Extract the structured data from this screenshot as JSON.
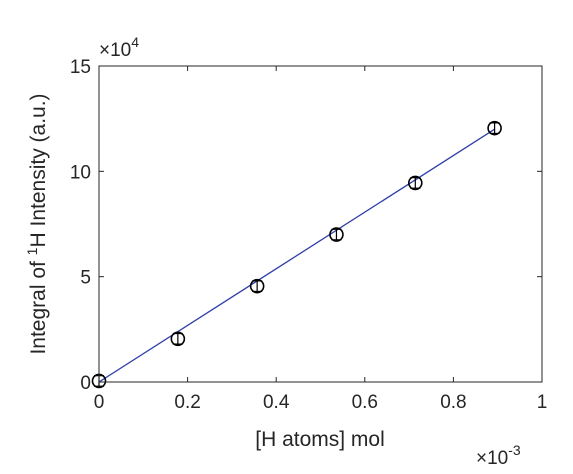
{
  "chart_data": {
    "type": "scatter",
    "title": "",
    "xlabel": "[H atoms] mol",
    "ylabel_pre": "Integral of ",
    "ylabel_sup": "1",
    "ylabel_post": "H Intensity (a.u.)",
    "x_multiplier_base": "×10",
    "x_multiplier_exp": "-3",
    "y_multiplier_base": "×10",
    "y_multiplier_exp": "4",
    "xlim": [
      0,
      1
    ],
    "ylim": [
      0,
      15
    ],
    "xticks": [
      0,
      0.2,
      0.4,
      0.6,
      0.8,
      1
    ],
    "xtick_labels": [
      "0",
      "0.2",
      "0.4",
      "0.6",
      "0.8",
      "1"
    ],
    "yticks": [
      0,
      5,
      10,
      15
    ],
    "ytick_labels": [
      "0",
      "5",
      "10",
      "15"
    ],
    "grid": false,
    "legend": "none",
    "series": [
      {
        "marker": "circle-with-errorbar",
        "color": "#000000",
        "x": [
          0.0,
          0.178,
          0.357,
          0.536,
          0.714,
          0.893
        ],
        "y": [
          0.05,
          2.05,
          4.55,
          7.0,
          9.45,
          12.05
        ],
        "yerr": [
          0.25,
          0.25,
          0.25,
          0.25,
          0.25,
          0.25
        ]
      }
    ],
    "fit_line": {
      "color": "#2f3fa8",
      "x": [
        0.0,
        0.893
      ],
      "y": [
        0.0,
        12.0
      ]
    }
  }
}
